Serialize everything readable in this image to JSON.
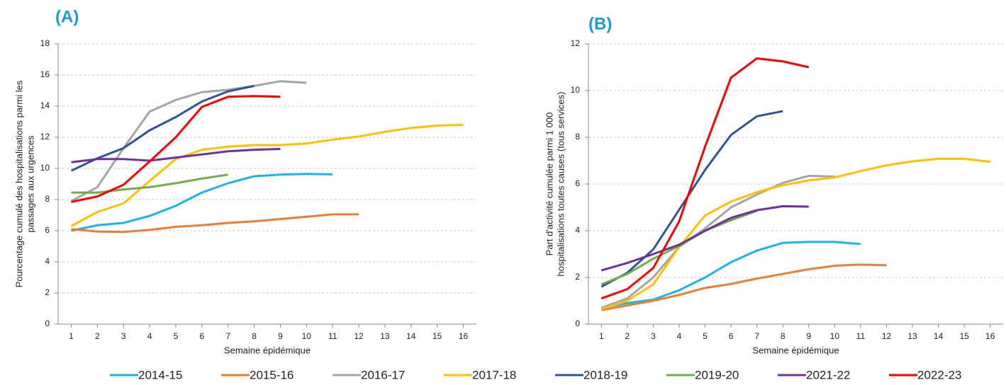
{
  "chart_data": [
    {
      "type": "line",
      "title": "(A)",
      "x_label": "Semaine épidémique",
      "y_label": [
        "Pourcentage cumulé des hospitalisations parmi les",
        "passages aux urgences"
      ],
      "x": [
        1,
        2,
        3,
        4,
        5,
        6,
        7,
        8,
        9,
        10,
        11,
        12,
        13,
        14,
        15,
        16
      ],
      "xlim": [
        0.5,
        16.5
      ],
      "xticks": [
        1,
        2,
        3,
        4,
        5,
        6,
        7,
        8,
        9,
        10,
        11,
        12,
        13,
        14,
        15,
        16
      ],
      "ylim": [
        0,
        18
      ],
      "yticks": [
        0,
        2,
        4,
        6,
        8,
        10,
        12,
        14,
        16,
        18
      ],
      "grid": true,
      "series": [
        {
          "name": "2014-15",
          "color": "#1ab4e8",
          "values": [
            6.0,
            6.35,
            6.5,
            6.95,
            7.6,
            8.45,
            9.05,
            9.5,
            9.6,
            9.65,
            9.62,
            null,
            null,
            null,
            null,
            null
          ]
        },
        {
          "name": "2015-16",
          "color": "#ed7d31",
          "values": [
            6.1,
            5.95,
            5.92,
            6.05,
            6.25,
            6.35,
            6.5,
            6.6,
            6.75,
            6.9,
            7.05,
            7.05,
            null,
            null,
            null,
            null
          ]
        },
        {
          "name": "2016-17",
          "color": "#a5a5a5",
          "values": [
            7.9,
            8.8,
            11.3,
            13.65,
            14.4,
            14.9,
            15.05,
            15.3,
            15.6,
            15.5,
            null,
            null,
            null,
            null,
            null,
            null
          ]
        },
        {
          "name": "2017-18",
          "color": "#ffc000",
          "values": [
            6.3,
            7.2,
            7.75,
            9.2,
            10.6,
            11.2,
            11.4,
            11.5,
            11.5,
            11.6,
            11.85,
            12.05,
            12.35,
            12.6,
            12.75,
            12.8
          ]
        },
        {
          "name": "2018-19",
          "color": "#2f5597",
          "values": [
            9.85,
            10.65,
            11.3,
            12.45,
            13.3,
            14.3,
            14.95,
            15.3,
            null,
            null,
            null,
            null,
            null,
            null,
            null,
            null
          ]
        },
        {
          "name": "2019-20",
          "color": "#70ad47",
          "values": [
            8.45,
            8.45,
            8.65,
            8.8,
            9.05,
            9.35,
            9.6,
            null,
            null,
            null,
            null,
            null,
            null,
            null,
            null,
            null
          ]
        },
        {
          "name": "2021-22",
          "color": "#7030a0",
          "values": [
            10.4,
            10.6,
            10.6,
            10.5,
            10.7,
            10.9,
            11.1,
            11.2,
            11.25,
            null,
            null,
            null,
            null,
            null,
            null,
            null
          ]
        },
        {
          "name": "2022-23",
          "color": "#ff0000",
          "values": [
            7.85,
            8.2,
            8.95,
            10.45,
            12.0,
            13.95,
            14.6,
            14.65,
            14.6,
            null,
            null,
            null,
            null,
            null,
            null,
            null
          ]
        }
      ]
    },
    {
      "type": "line",
      "title": "(B)",
      "x_label": "Semaine épidémique",
      "y_label": [
        "Part d'activité cumulée parmi 1 000",
        "hospitalisations toutes causes (tous services)"
      ],
      "x": [
        1,
        2,
        3,
        4,
        5,
        6,
        7,
        8,
        9,
        10,
        11,
        12,
        13,
        14,
        15,
        16
      ],
      "xlim": [
        0.5,
        16.5
      ],
      "xticks": [
        1,
        2,
        3,
        4,
        5,
        6,
        7,
        8,
        9,
        10,
        11,
        12,
        13,
        14,
        15,
        16
      ],
      "ylim": [
        0,
        12
      ],
      "yticks": [
        0,
        2,
        4,
        6,
        8,
        10,
        12
      ],
      "grid": true,
      "series": [
        {
          "color": "#1ab4e8",
          "values": [
            0.7,
            0.9,
            1.05,
            1.45,
            2.0,
            2.65,
            3.15,
            3.48,
            3.52,
            3.52,
            3.43,
            null,
            null,
            null,
            null,
            null
          ]
        },
        {
          "color": "#ed7d31",
          "values": [
            0.6,
            0.8,
            1.0,
            1.25,
            1.55,
            1.72,
            1.95,
            2.15,
            2.35,
            2.5,
            2.55,
            2.52,
            null,
            null,
            null,
            null
          ]
        },
        {
          "color": "#a5a5a5",
          "values": [
            0.7,
            1.1,
            2.0,
            3.3,
            4.1,
            5.0,
            5.55,
            6.05,
            6.35,
            6.32,
            null,
            null,
            null,
            null,
            null,
            null
          ]
        },
        {
          "color": "#ffc000",
          "values": [
            0.65,
            1.0,
            1.7,
            3.3,
            4.65,
            5.25,
            5.65,
            5.95,
            6.15,
            6.28,
            6.55,
            6.8,
            6.97,
            7.08,
            7.08,
            6.95
          ]
        },
        {
          "color": "#2f5597",
          "values": [
            1.6,
            2.2,
            3.2,
            4.9,
            6.6,
            8.1,
            8.9,
            9.12,
            null,
            null,
            null,
            null,
            null,
            null,
            null,
            null
          ]
        },
        {
          "color": "#70ad47",
          "values": [
            1.7,
            2.15,
            2.8,
            3.35,
            4.0,
            4.45,
            4.85,
            null,
            null,
            null,
            null,
            null,
            null,
            null,
            null,
            null
          ]
        },
        {
          "color": "#7030a0",
          "values": [
            2.3,
            2.62,
            3.0,
            3.4,
            4.0,
            4.55,
            4.88,
            5.05,
            5.03,
            null,
            null,
            null,
            null,
            null,
            null,
            null
          ]
        },
        {
          "color": "#ff0000",
          "values": [
            1.1,
            1.5,
            2.4,
            4.4,
            7.6,
            10.55,
            11.38,
            11.25,
            11.0,
            null,
            null,
            null,
            null,
            null,
            null,
            null
          ]
        }
      ]
    }
  ]
}
